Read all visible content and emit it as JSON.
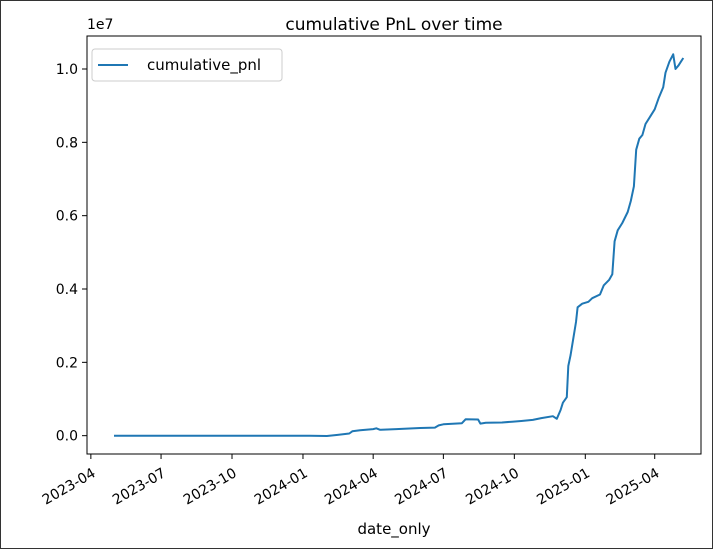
{
  "chart_data": {
    "type": "line",
    "title": "cumulative PnL over time",
    "xlabel": "date_only",
    "ylabel": "",
    "y_offset_label": "1e7",
    "y_scale": 10000000,
    "ylim": [
      -0.05,
      1.09
    ],
    "xlim": [
      "2023-03-27",
      "2025-05-31"
    ],
    "x_ticks": [
      {
        "date": "2023-04-01",
        "label": "2023-04"
      },
      {
        "date": "2023-07-01",
        "label": "2023-07"
      },
      {
        "date": "2023-10-01",
        "label": "2023-10"
      },
      {
        "date": "2024-01-01",
        "label": "2024-01"
      },
      {
        "date": "2024-04-01",
        "label": "2024-04"
      },
      {
        "date": "2024-07-01",
        "label": "2024-07"
      },
      {
        "date": "2024-10-01",
        "label": "2024-10"
      },
      {
        "date": "2025-01-01",
        "label": "2025-01"
      },
      {
        "date": "2025-04-01",
        "label": "2025-04"
      }
    ],
    "y_ticks": [
      {
        "value": 0.0,
        "label": "0.0"
      },
      {
        "value": 0.2,
        "label": "0.2"
      },
      {
        "value": 0.4,
        "label": "0.4"
      },
      {
        "value": 0.6,
        "label": "0.6"
      },
      {
        "value": 0.8,
        "label": "0.8"
      },
      {
        "value": 1.0,
        "label": "1.0"
      }
    ],
    "legend": {
      "position": "top-left"
    },
    "grid": false,
    "series": [
      {
        "name": "cumulative_pnl",
        "color": "#1f77b4",
        "points": [
          [
            "2023-05-01",
            0.0
          ],
          [
            "2023-08-01",
            0.0
          ],
          [
            "2023-11-01",
            0.0
          ],
          [
            "2024-01-10",
            0.0
          ],
          [
            "2024-02-01",
            -0.001
          ],
          [
            "2024-02-15",
            0.002
          ],
          [
            "2024-03-01",
            0.006
          ],
          [
            "2024-03-05",
            0.012
          ],
          [
            "2024-03-15",
            0.015
          ],
          [
            "2024-04-01",
            0.018
          ],
          [
            "2024-04-05",
            0.02
          ],
          [
            "2024-04-10",
            0.016
          ],
          [
            "2024-05-01",
            0.018
          ],
          [
            "2024-06-01",
            0.021
          ],
          [
            "2024-06-20",
            0.022
          ],
          [
            "2024-06-25",
            0.028
          ],
          [
            "2024-07-01",
            0.031
          ],
          [
            "2024-07-25",
            0.034
          ],
          [
            "2024-07-30",
            0.045
          ],
          [
            "2024-08-15",
            0.044
          ],
          [
            "2024-08-18",
            0.033
          ],
          [
            "2024-08-25",
            0.035
          ],
          [
            "2024-09-15",
            0.036
          ],
          [
            "2024-09-28",
            0.038
          ],
          [
            "2024-10-10",
            0.04
          ],
          [
            "2024-10-25",
            0.043
          ],
          [
            "2024-11-05",
            0.048
          ],
          [
            "2024-11-20",
            0.053
          ],
          [
            "2024-11-25",
            0.046
          ],
          [
            "2024-11-30",
            0.07
          ],
          [
            "2024-12-03",
            0.09
          ],
          [
            "2024-12-08",
            0.105
          ],
          [
            "2024-12-10",
            0.19
          ],
          [
            "2024-12-13",
            0.22
          ],
          [
            "2024-12-16",
            0.26
          ],
          [
            "2024-12-20",
            0.31
          ],
          [
            "2024-12-22",
            0.35
          ],
          [
            "2024-12-28",
            0.36
          ],
          [
            "2025-01-05",
            0.365
          ],
          [
            "2025-01-10",
            0.375
          ],
          [
            "2025-01-20",
            0.385
          ],
          [
            "2025-01-25",
            0.41
          ],
          [
            "2025-02-01",
            0.425
          ],
          [
            "2025-02-05",
            0.44
          ],
          [
            "2025-02-08",
            0.53
          ],
          [
            "2025-02-12",
            0.56
          ],
          [
            "2025-02-18",
            0.58
          ],
          [
            "2025-02-25",
            0.61
          ],
          [
            "2025-03-01",
            0.64
          ],
          [
            "2025-03-05",
            0.68
          ],
          [
            "2025-03-08",
            0.78
          ],
          [
            "2025-03-12",
            0.81
          ],
          [
            "2025-03-16",
            0.82
          ],
          [
            "2025-03-20",
            0.85
          ],
          [
            "2025-03-26",
            0.87
          ],
          [
            "2025-04-01",
            0.89
          ],
          [
            "2025-04-06",
            0.92
          ],
          [
            "2025-04-12",
            0.95
          ],
          [
            "2025-04-15",
            0.99
          ],
          [
            "2025-04-20",
            1.02
          ],
          [
            "2025-04-25",
            1.04
          ],
          [
            "2025-04-28",
            1.0
          ],
          [
            "2025-05-02",
            1.01
          ],
          [
            "2025-05-05",
            1.02
          ],
          [
            "2025-05-08",
            1.03
          ]
        ]
      }
    ]
  }
}
